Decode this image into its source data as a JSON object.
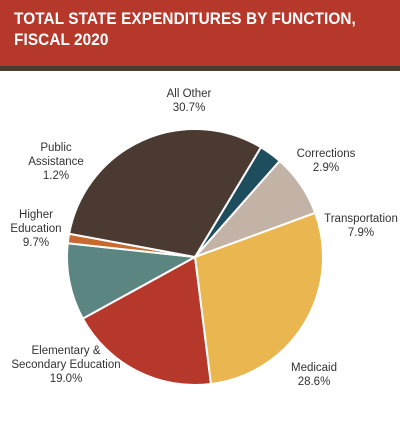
{
  "chart_data": {
    "type": "pie",
    "title": "TOTAL STATE EXPENDITURES BY FUNCTION,\nFISCAL 2020",
    "slices": [
      {
        "name": "Corrections",
        "value": 2.9,
        "value_label": "2.9%",
        "color": "#1e4d5e"
      },
      {
        "name": "Transportation",
        "value": 7.9,
        "value_label": "7.9%",
        "color": "#c3b3a7"
      },
      {
        "name": "Medicaid",
        "value": 28.6,
        "value_label": "28.6%",
        "color": "#e9b64f"
      },
      {
        "name": "Elementary &\nSecondary Education",
        "value": 19.0,
        "value_label": "19.0%",
        "color": "#b5382b"
      },
      {
        "name": "Higher\nEducation",
        "value": 9.7,
        "value_label": "9.7%",
        "color": "#5b8580"
      },
      {
        "name": "Public\nAssistance",
        "value": 1.2,
        "value_label": "1.2%",
        "color": "#c8692e"
      },
      {
        "name": "All Other",
        "value": 30.7,
        "value_label": "30.7%",
        "color": "#4b3a32"
      }
    ]
  }
}
